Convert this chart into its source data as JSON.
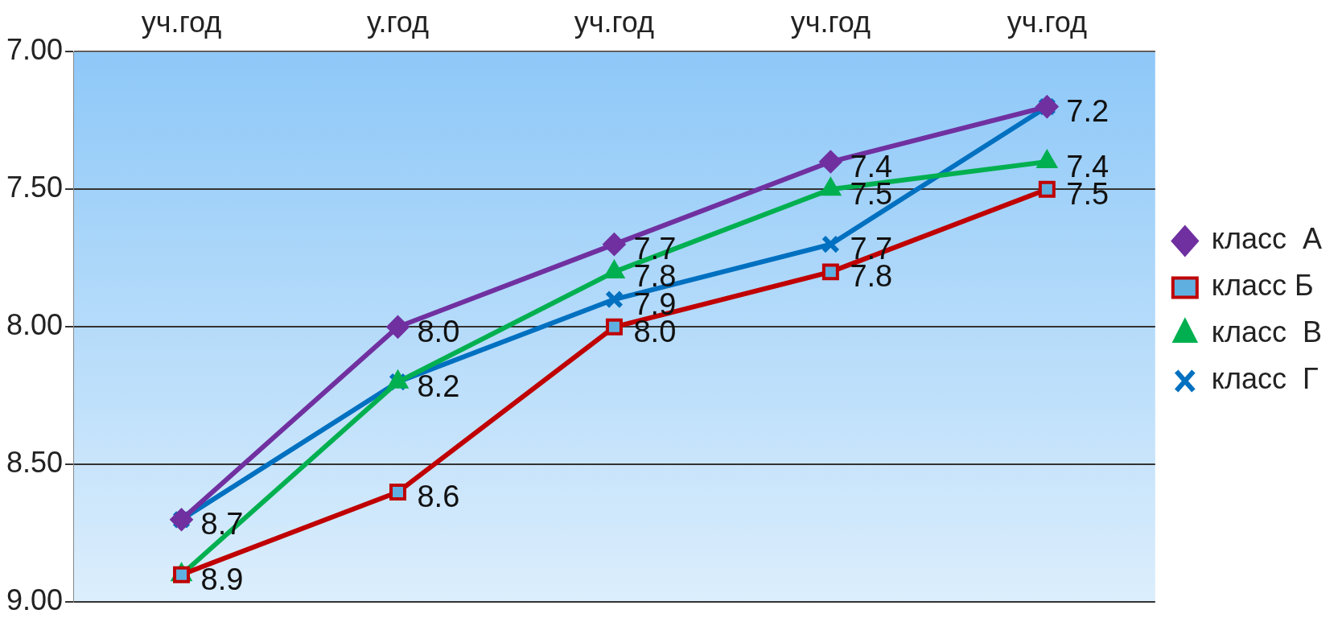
{
  "chart_data": {
    "type": "line",
    "categories": [
      "уч.год",
      "у.год",
      "уч.год",
      "уч.год",
      "уч.год"
    ],
    "ylim": [
      9,
      7
    ],
    "yticks": [
      {
        "value": 7,
        "label": "7.00"
      },
      {
        "value": 7.5,
        "label": "7.50"
      },
      {
        "value": 8,
        "label": "8.00"
      },
      {
        "value": 8.5,
        "label": "8.50"
      },
      {
        "value": 9,
        "label": "9.00"
      }
    ],
    "grid": "y",
    "legend": "right",
    "line_style": "solid",
    "series": [
      {
        "name": "класс  А",
        "color": "#7030a0",
        "marker": "diamond",
        "values": [
          8.7,
          8.0,
          7.7,
          7.4,
          7.2
        ],
        "value_labels": [
          null,
          "8.0",
          "7.7",
          "7.4",
          null
        ]
      },
      {
        "name": "класс Б",
        "color": "#c00000",
        "marker": "square",
        "values": [
          8.9,
          8.6,
          8.0,
          7.8,
          7.5
        ],
        "value_labels": [
          null,
          "8.6",
          "8.0",
          "7.8",
          "7.5"
        ]
      },
      {
        "name": "класс  В",
        "color": "#00b050",
        "marker": "triangle",
        "values": [
          8.9,
          8.2,
          7.8,
          7.5,
          7.4
        ],
        "value_labels": [
          "8.9",
          null,
          "7.8",
          "7.5",
          "7.4"
        ]
      },
      {
        "name": "класс  Г",
        "color": "#0070c0",
        "marker": "cross",
        "values": [
          8.7,
          8.2,
          7.9,
          7.7,
          7.2
        ],
        "value_labels": [
          "8.7",
          "8.2",
          "7.9",
          "7.7",
          "7.2"
        ]
      }
    ]
  }
}
